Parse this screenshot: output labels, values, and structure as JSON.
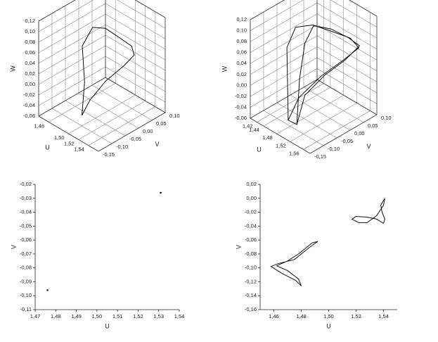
{
  "chart_data": [
    {
      "type": "line3d",
      "xlabel": "U",
      "ylabel": "V",
      "zlabel": "W",
      "grid": true,
      "color": "#111111",
      "x": [
        1.5,
        1.5,
        1.49,
        1.5,
        1.51,
        1.52,
        1.53,
        1.53,
        1.52,
        1.51,
        1.5,
        1.5
      ],
      "y": [
        -0.1,
        -0.09,
        -0.08,
        -0.06,
        -0.03,
        0.0,
        0.03,
        0.04,
        0.02,
        -0.03,
        -0.07,
        -0.1
      ],
      "values": [
        -0.04,
        0.02,
        0.08,
        0.115,
        0.11,
        0.09,
        0.07,
        0.05,
        0.03,
        0.01,
        -0.02,
        -0.04
      ],
      "xlim": [
        1.44,
        1.56
      ],
      "ylim": [
        -0.15,
        0.1
      ],
      "zlim": [
        -0.06,
        0.12
      ],
      "xticks": [
        {
          "value": 1.46,
          "label": "1,46"
        },
        {
          "value": 1.5,
          "label": "1,50"
        },
        {
          "value": 1.52,
          "label": "1,52"
        },
        {
          "value": 1.54,
          "label": "1,54"
        }
      ],
      "yticks": [
        {
          "value": 0.1,
          "label": "0,10"
        },
        {
          "value": 0.05,
          "label": "0,05"
        },
        {
          "value": 0.0,
          "label": "0,00"
        },
        {
          "value": -0.05,
          "label": "-0,05"
        },
        {
          "value": -0.1,
          "label": "-0,10"
        },
        {
          "value": -0.15,
          "label": "-0,15"
        }
      ],
      "zticks": [
        {
          "value": 0.12,
          "label": "0,12"
        },
        {
          "value": 0.1,
          "label": "0,10"
        },
        {
          "value": 0.08,
          "label": "0,08"
        },
        {
          "value": 0.06,
          "label": "0,06"
        },
        {
          "value": 0.04,
          "label": "0,04"
        },
        {
          "value": 0.02,
          "label": "0,02"
        },
        {
          "value": 0.0,
          "label": "0,00"
        },
        {
          "value": -0.02,
          "label": "-0,02"
        },
        {
          "value": -0.04,
          "label": "-0,04"
        },
        {
          "value": -0.06,
          "label": "-0,06"
        }
      ]
    },
    {
      "type": "line3d",
      "xlabel": "U",
      "ylabel": "V",
      "zlabel": "W",
      "grid": true,
      "color": "#111111",
      "x": [
        1.49,
        1.48,
        1.47,
        1.48,
        1.5,
        1.52,
        1.54,
        1.55,
        1.53,
        1.51,
        1.49,
        1.49,
        1.5,
        1.5,
        1.5,
        1.51,
        1.53,
        1.55,
        1.56,
        1.54,
        1.52,
        1.5,
        1.5
      ],
      "y": [
        -0.12,
        -0.11,
        -0.1,
        -0.08,
        -0.04,
        0.0,
        0.05,
        0.07,
        0.04,
        -0.02,
        -0.08,
        -0.12,
        -0.1,
        -0.09,
        -0.07,
        -0.05,
        -0.01,
        0.03,
        0.06,
        0.03,
        -0.02,
        -0.07,
        -0.1
      ],
      "values": [
        -0.04,
        0.02,
        0.08,
        0.115,
        0.115,
        0.1,
        0.08,
        0.06,
        0.04,
        0.02,
        -0.01,
        -0.04,
        -0.05,
        0.03,
        0.09,
        0.12,
        0.11,
        0.09,
        0.07,
        0.045,
        0.025,
        -0.005,
        -0.05
      ],
      "xlim": [
        1.4,
        1.58
      ],
      "ylim": [
        -0.15,
        0.1
      ],
      "zlim": [
        -0.06,
        0.12
      ],
      "xticks": [
        {
          "value": 1.42,
          "label": "1,42"
        },
        {
          "value": 1.44,
          "label": "1,44"
        },
        {
          "value": 1.48,
          "label": "1,48"
        },
        {
          "value": 1.52,
          "label": "1,52"
        },
        {
          "value": 1.56,
          "label": "1,56"
        }
      ],
      "yticks": [
        {
          "value": 0.1,
          "label": "0,10"
        },
        {
          "value": 0.05,
          "label": "0,05"
        },
        {
          "value": 0.0,
          "label": "0,00"
        },
        {
          "value": -0.05,
          "label": "-0,05"
        },
        {
          "value": -0.1,
          "label": "-0,10"
        },
        {
          "value": -0.15,
          "label": "-0,15"
        }
      ],
      "zticks": [
        {
          "value": 0.12,
          "label": "0,12"
        },
        {
          "value": 0.1,
          "label": "0,10"
        },
        {
          "value": 0.08,
          "label": "0,08"
        },
        {
          "value": 0.06,
          "label": "0,06"
        },
        {
          "value": 0.04,
          "label": "0,04"
        },
        {
          "value": 0.02,
          "label": "0,02"
        },
        {
          "value": 0.0,
          "label": "0,00"
        },
        {
          "value": -0.02,
          "label": "-0,02"
        },
        {
          "value": -0.04,
          "label": "-0,04"
        },
        {
          "value": -0.06,
          "label": "-0,06"
        }
      ]
    },
    {
      "type": "scatter",
      "xlabel": "U",
      "ylabel": "V",
      "grid": false,
      "color": "#111111",
      "x": [
        1.476,
        1.531
      ],
      "values": [
        -0.096,
        -0.026
      ],
      "xlim": [
        1.47,
        1.54
      ],
      "ylim": [
        -0.11,
        -0.02
      ],
      "xticks": [
        {
          "value": 1.47,
          "label": "1,47"
        },
        {
          "value": 1.48,
          "label": "1,48"
        },
        {
          "value": 1.49,
          "label": "1,49"
        },
        {
          "value": 1.5,
          "label": "1,50"
        },
        {
          "value": 1.51,
          "label": "1,51"
        },
        {
          "value": 1.52,
          "label": "1,52"
        },
        {
          "value": 1.53,
          "label": "1,53"
        },
        {
          "value": 1.54,
          "label": "1,54"
        }
      ],
      "yticks": [
        {
          "value": -0.02,
          "label": "-0,02"
        },
        {
          "value": -0.03,
          "label": "-0,03"
        },
        {
          "value": -0.04,
          "label": "-0,04"
        },
        {
          "value": -0.05,
          "label": "-0,05"
        },
        {
          "value": -0.06,
          "label": "-0,06"
        },
        {
          "value": -0.07,
          "label": "-0,07"
        },
        {
          "value": -0.08,
          "label": "-0,08"
        },
        {
          "value": -0.09,
          "label": "-0,09"
        },
        {
          "value": -0.1,
          "label": "-0,10"
        },
        {
          "value": -0.11,
          "label": "-0,11"
        }
      ]
    },
    {
      "type": "line",
      "xlabel": "U",
      "ylabel": "V",
      "grid": false,
      "color": "#111111",
      "x": [
        1.462,
        1.47,
        1.478,
        1.48,
        1.476,
        1.466,
        1.458,
        1.463,
        1.475,
        1.485,
        1.492,
        1.488,
        1.478,
        1.47,
        1.462,
        null,
        1.541,
        1.54,
        1.535,
        1.528,
        1.522,
        1.517,
        1.52,
        1.528,
        1.535,
        1.54,
        1.541,
        1.539,
        1.538,
        1.541
      ],
      "values": [
        -0.097,
        -0.104,
        -0.116,
        -0.126,
        -0.118,
        -0.108,
        -0.098,
        -0.094,
        -0.088,
        -0.072,
        -0.062,
        -0.064,
        -0.08,
        -0.09,
        -0.097,
        null,
        0.0,
        -0.01,
        -0.025,
        -0.035,
        -0.035,
        -0.03,
        -0.026,
        -0.027,
        -0.03,
        -0.036,
        -0.03,
        -0.02,
        -0.01,
        0.0
      ],
      "xlim": [
        1.45,
        1.55
      ],
      "ylim": [
        -0.16,
        0.02
      ],
      "xticks": [
        {
          "value": 1.46,
          "label": "1,46"
        },
        {
          "value": 1.48,
          "label": "1,48"
        },
        {
          "value": 1.5,
          "label": "1,50"
        },
        {
          "value": 1.52,
          "label": "1,52"
        },
        {
          "value": 1.54,
          "label": "1,54"
        }
      ],
      "yticks": [
        {
          "value": 0.02,
          "label": "0,02"
        },
        {
          "value": 0.0,
          "label": "0,00"
        },
        {
          "value": -0.02,
          "label": "-0,02"
        },
        {
          "value": -0.04,
          "label": "-0,04"
        },
        {
          "value": -0.06,
          "label": "-0,06"
        },
        {
          "value": -0.08,
          "label": "-0,08"
        },
        {
          "value": -0.1,
          "label": "-0,10"
        },
        {
          "value": -0.12,
          "label": "-0,12"
        },
        {
          "value": -0.14,
          "label": "-0,14"
        },
        {
          "value": -0.16,
          "label": "-0,16"
        }
      ]
    }
  ]
}
